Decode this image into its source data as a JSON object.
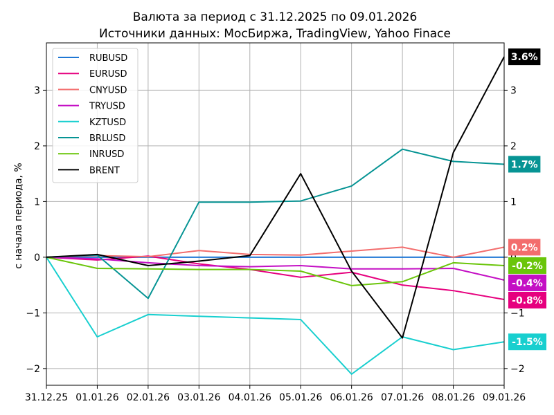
{
  "chart_data": {
    "type": "line",
    "title": "Валюта за период с 31.12.2025 по 09.01.2026",
    "subtitle": "Источники данных: МосБиржа, TradingView, Yahoo Finace",
    "xlabel": "",
    "ylabel": "с начала периода, %",
    "categories": [
      "31.12.25",
      "01.01.26",
      "02.01.26",
      "03.01.26",
      "04.01.26",
      "05.01.26",
      "06.01.26",
      "07.01.26",
      "08.01.26",
      "09.01.26"
    ],
    "ylim": [
      -2.3,
      3.85
    ],
    "yticks": [
      -2,
      -1,
      0,
      1,
      2,
      3
    ],
    "ytick_labels": [
      "−2",
      "−1",
      "0",
      "1",
      "2",
      "3"
    ],
    "grid": true,
    "legend_position": "top-left",
    "series": [
      {
        "name": "RUBUSD",
        "color": "#1f77d4",
        "values": [
          0,
          0,
          0,
          0,
          0,
          0,
          0,
          0,
          0,
          0
        ],
        "end_label": "",
        "end_label_color": ""
      },
      {
        "name": "EURUSD",
        "color": "#e6007e",
        "values": [
          0,
          -0.05,
          0.02,
          -0.12,
          -0.22,
          -0.36,
          -0.27,
          -0.5,
          -0.6,
          -0.76
        ],
        "end_label": "-0.8%",
        "end_label_color": "#e6007e"
      },
      {
        "name": "CNYUSD",
        "color": "#f36d6d",
        "values": [
          0,
          0.03,
          0.01,
          0.12,
          0.05,
          0.04,
          0.11,
          0.18,
          0,
          0.18
        ],
        "end_label": "0.2%",
        "end_label_color": "#f36d6d"
      },
      {
        "name": "TRYUSD",
        "color": "#c40fc4",
        "values": [
          0,
          -0.03,
          -0.1,
          -0.15,
          -0.17,
          -0.15,
          -0.21,
          -0.21,
          -0.2,
          -0.41
        ],
        "end_label": "-0.4%",
        "end_label_color": "#c40fc4"
      },
      {
        "name": "KZTUSD",
        "color": "#18cfcf",
        "values": [
          0,
          -1.43,
          -1.03,
          -1.06,
          -1.09,
          -1.12,
          -2.1,
          -1.43,
          -1.66,
          -1.52
        ],
        "end_label": "-1.5%",
        "end_label_color": "#18cfcf"
      },
      {
        "name": "BRLUSD",
        "color": "#069494",
        "values": [
          0,
          0.04,
          -0.74,
          0.99,
          0.99,
          1.01,
          1.28,
          1.94,
          1.72,
          1.67
        ],
        "end_label": "1.7%",
        "end_label_color": "#069494"
      },
      {
        "name": "INRUSD",
        "color": "#6ac50a",
        "values": [
          0,
          -0.2,
          -0.21,
          -0.22,
          -0.22,
          -0.25,
          -0.51,
          -0.44,
          -0.1,
          -0.15
        ],
        "end_label": "-0.2%",
        "end_label_color": "#6ac50a"
      },
      {
        "name": "BRENT",
        "color": "#000000",
        "values": [
          0,
          0.05,
          -0.15,
          -0.07,
          0.03,
          1.5,
          -0.25,
          -1.45,
          1.88,
          3.6
        ],
        "end_label": "3.6%",
        "end_label_color": "#000000"
      }
    ]
  }
}
